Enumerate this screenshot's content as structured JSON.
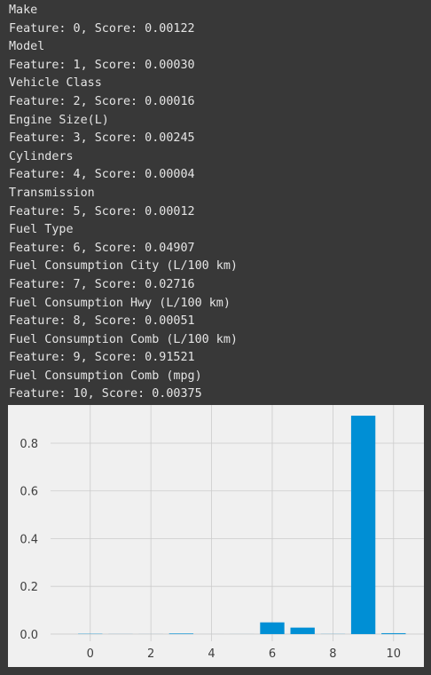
{
  "output_lines": [
    "Make",
    "Feature: 0, Score: 0.00122",
    "Model",
    "Feature: 1, Score: 0.00030",
    "Vehicle Class",
    "Feature: 2, Score: 0.00016",
    "Engine Size(L)",
    "Feature: 3, Score: 0.00245",
    "Cylinders",
    "Feature: 4, Score: 0.00004",
    "Transmission",
    "Feature: 5, Score: 0.00012",
    "Fuel Type",
    "Feature: 6, Score: 0.04907",
    "Fuel Consumption City (L/100 km)",
    "Feature: 7, Score: 0.02716",
    "Fuel Consumption Hwy (L/100 km)",
    "Feature: 8, Score: 0.00051",
    "Fuel Consumption Comb (L/100 km)",
    "Feature: 9, Score: 0.91521",
    "Fuel Consumption Comb (mpg)",
    "Feature: 10, Score: 0.00375"
  ],
  "colors": {
    "output_background": "#383838",
    "output_text": "#e4e4e4",
    "plot_background": "#f0f0f0",
    "grid": "#cbcbcb",
    "bar": "#008fd5"
  },
  "chart_data": {
    "type": "bar",
    "style": "fivethirtyeight",
    "x": [
      0,
      1,
      2,
      3,
      4,
      5,
      6,
      7,
      8,
      9,
      10
    ],
    "values": [
      0.00122,
      0.0003,
      0.00016,
      0.00245,
      4e-05,
      0.00012,
      0.04907,
      0.02716,
      0.00051,
      0.91521,
      0.00375
    ],
    "x_ticks": [
      0,
      2,
      4,
      6,
      8,
      10
    ],
    "x_tick_labels": [
      "0",
      "2",
      "4",
      "6",
      "8",
      "10"
    ],
    "y_ticks": [
      0.0,
      0.2,
      0.4,
      0.6,
      0.8
    ],
    "y_tick_labels": [
      "0.0",
      "0.2",
      "0.4",
      "0.6",
      "0.8"
    ],
    "xlim": [
      -1.25,
      11.0
    ],
    "ylim": [
      -0.03,
      0.96
    ],
    "grid": true,
    "legend": "none",
    "title": "",
    "xlabel": "",
    "ylabel": ""
  }
}
